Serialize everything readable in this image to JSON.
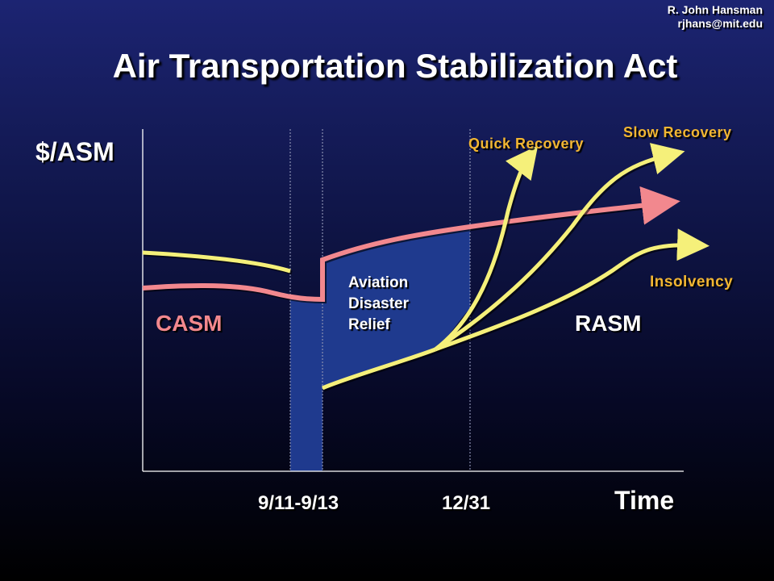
{
  "header": {
    "author": "R. John Hansman",
    "email": "rjhans@mit.edu",
    "title": "Air Transportation Stabilization Act"
  },
  "axes": {
    "y_label": "$/ASM",
    "x_label": "Time"
  },
  "markers": {
    "event_range": "9/11-9/13",
    "year_end": "12/31"
  },
  "curves": {
    "casm": "CASM",
    "rasm": "RASM",
    "quick_recovery": "Quick Recovery",
    "slow_recovery": "Slow Recovery",
    "insolvency": "Insolvency"
  },
  "relief": {
    "line1": "Aviation",
    "line2": "Disaster",
    "line3": "Relief"
  },
  "colors": {
    "casm": "#f2888e",
    "rasm": "#f5f07a",
    "scenario_labels": "#f2b632",
    "relief_area": "#1f3a8e"
  }
}
